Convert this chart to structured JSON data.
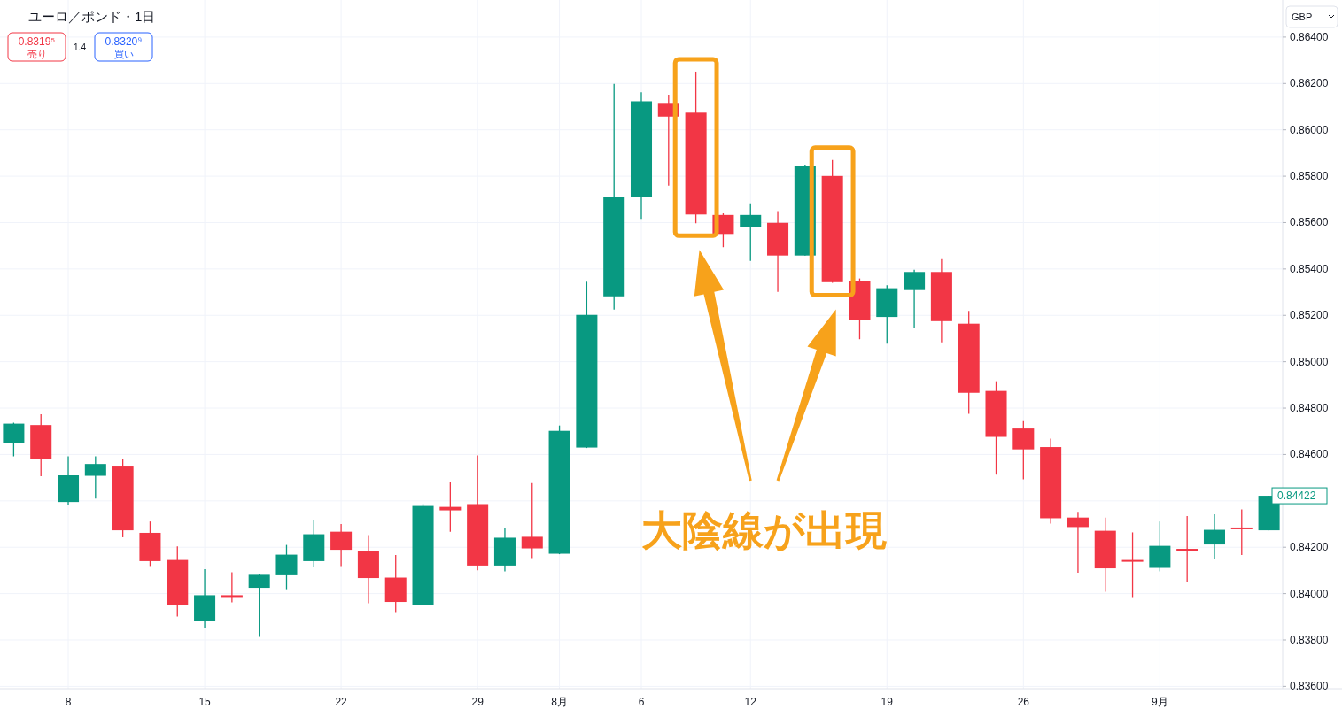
{
  "chart_data": {
    "type": "candlestick",
    "title": "ユーロ／ポンド・1日",
    "ylabel": "GBP",
    "categories": [
      null,
      null,
      "8",
      null,
      null,
      null,
      null,
      "15",
      null,
      null,
      null,
      null,
      "22",
      null,
      null,
      null,
      null,
      "29",
      null,
      null,
      "8月",
      null,
      null,
      "6",
      null,
      null,
      null,
      "12",
      null,
      null,
      null,
      null,
      "19",
      null,
      null,
      null,
      null,
      "26",
      null,
      null,
      null,
      null,
      "9月",
      null,
      null,
      null,
      null
    ],
    "ohlc": [
      [
        0.84649,
        0.84737,
        0.84592,
        0.84733
      ],
      [
        0.84727,
        0.84773,
        0.84506,
        0.8458
      ],
      [
        0.84395,
        0.84592,
        0.84382,
        0.8451
      ],
      [
        0.84508,
        0.84592,
        0.8441,
        0.84559
      ],
      [
        0.84548,
        0.84582,
        0.84243,
        0.84273
      ],
      [
        0.84262,
        0.84311,
        0.84119,
        0.8414
      ],
      [
        0.84145,
        0.84204,
        0.83901,
        0.83949
      ],
      [
        0.83882,
        0.84105,
        0.83852,
        0.83993
      ],
      [
        0.83993,
        0.84092,
        0.83962,
        0.8399
      ],
      [
        0.84025,
        0.84086,
        0.83813,
        0.84081
      ],
      [
        0.84079,
        0.8421,
        0.84019,
        0.84168
      ],
      [
        0.8414,
        0.84315,
        0.84115,
        0.84256
      ],
      [
        0.84267,
        0.843,
        0.84119,
        0.84189
      ],
      [
        0.84183,
        0.84252,
        0.83958,
        0.84067
      ],
      [
        0.84069,
        0.84166,
        0.8392,
        0.83964
      ],
      [
        0.8395,
        0.84386,
        0.8395,
        0.84378
      ],
      [
        0.84374,
        0.84481,
        0.84267,
        0.84359
      ],
      [
        0.84386,
        0.84596,
        0.84101,
        0.84121
      ],
      [
        0.84121,
        0.84281,
        0.84096,
        0.84241
      ],
      [
        0.84245,
        0.84477,
        0.84153,
        0.84195
      ],
      [
        0.84172,
        0.84725,
        0.8417,
        0.84702
      ],
      [
        0.8463,
        0.85345,
        0.84628,
        0.85202
      ],
      [
        0.85282,
        0.86198,
        0.85225,
        0.8571
      ],
      [
        0.85711,
        0.86162,
        0.85616,
        0.86123
      ],
      [
        0.86116,
        0.86152,
        0.85759,
        0.86057
      ],
      [
        0.86074,
        0.86251,
        0.85597,
        0.85635
      ],
      [
        0.85633,
        0.8564,
        0.85494,
        0.85551
      ],
      [
        0.85582,
        0.85683,
        0.85435,
        0.85633
      ],
      [
        0.85599,
        0.8565,
        0.85301,
        0.85458
      ],
      [
        0.85458,
        0.8585,
        0.85458,
        0.85843
      ],
      [
        0.85801,
        0.8587,
        0.8534,
        0.85343
      ],
      [
        0.85349,
        0.85359,
        0.85097,
        0.85179
      ],
      [
        0.85193,
        0.8533,
        0.85078,
        0.85317
      ],
      [
        0.85309,
        0.85397,
        0.85145,
        0.85387
      ],
      [
        0.85387,
        0.85442,
        0.85084,
        0.85175
      ],
      [
        0.85164,
        0.85219,
        0.84775,
        0.84866
      ],
      [
        0.84874,
        0.84916,
        0.84513,
        0.84676
      ],
      [
        0.84712,
        0.84744,
        0.84493,
        0.84622
      ],
      [
        0.84632,
        0.84668,
        0.84302,
        0.84325
      ],
      [
        0.84328,
        0.84353,
        0.8409,
        0.84287
      ],
      [
        0.84271,
        0.84328,
        0.84008,
        0.84109
      ],
      [
        0.84145,
        0.84264,
        0.83985,
        0.84141
      ],
      [
        0.84111,
        0.84311,
        0.84096,
        0.84206
      ],
      [
        0.84193,
        0.84334,
        0.84048,
        0.84189
      ],
      [
        0.84212,
        0.84342,
        0.84147,
        0.84275
      ],
      [
        0.84285,
        0.84363,
        0.84166,
        0.84281
      ],
      [
        0.84273,
        0.84422,
        0.84273,
        0.84422
      ]
    ],
    "colors": [
      "#089981",
      "#f23645",
      "#089981",
      "#089981",
      "#f23645",
      "#f23645",
      "#f23645",
      "#089981",
      "#f23645",
      "#089981",
      "#089981",
      "#089981",
      "#f23645",
      "#f23645",
      "#f23645",
      "#089981",
      "#f23645",
      "#f23645",
      "#089981",
      "#f23645",
      "#089981",
      "#089981",
      "#089981",
      "#089981",
      "#f23645",
      "#f23645",
      "#f23645",
      "#089981",
      "#f23645",
      "#089981",
      "#f23645",
      "#f23645",
      "#089981",
      "#089981",
      "#f23645",
      "#f23645",
      "#f23645",
      "#f23645",
      "#f23645",
      "#f23645",
      "#f23645",
      "#f23645",
      "#089981",
      "#f23645",
      "#089981",
      "#f23645",
      "#089981"
    ],
    "ylim": [
      0.8359,
      0.8656
    ],
    "yticks": [
      {
        "value": 0.836,
        "label": "0.83600"
      },
      {
        "value": 0.838,
        "label": "0.83800"
      },
      {
        "value": 0.84,
        "label": "0.84000"
      },
      {
        "value": 0.842,
        "label": "0.84200"
      },
      {
        "value": 0.844,
        "label": null
      },
      {
        "value": 0.846,
        "label": "0.84600"
      },
      {
        "value": 0.848,
        "label": "0.84800"
      },
      {
        "value": 0.85,
        "label": "0.85000"
      },
      {
        "value": 0.852,
        "label": "0.85200"
      },
      {
        "value": 0.854,
        "label": "0.85400"
      },
      {
        "value": 0.856,
        "label": "0.85600"
      },
      {
        "value": 0.858,
        "label": "0.85800"
      },
      {
        "value": 0.86,
        "label": "0.86000"
      },
      {
        "value": 0.862,
        "label": "0.86200"
      },
      {
        "value": 0.864,
        "label": "0.86400"
      }
    ],
    "grid": true,
    "annotations": [
      "0.8319⁵",
      "売り",
      "1.4",
      "0.8320⁹",
      "買い",
      "大陰線が出現",
      "0.84422"
    ]
  }
}
